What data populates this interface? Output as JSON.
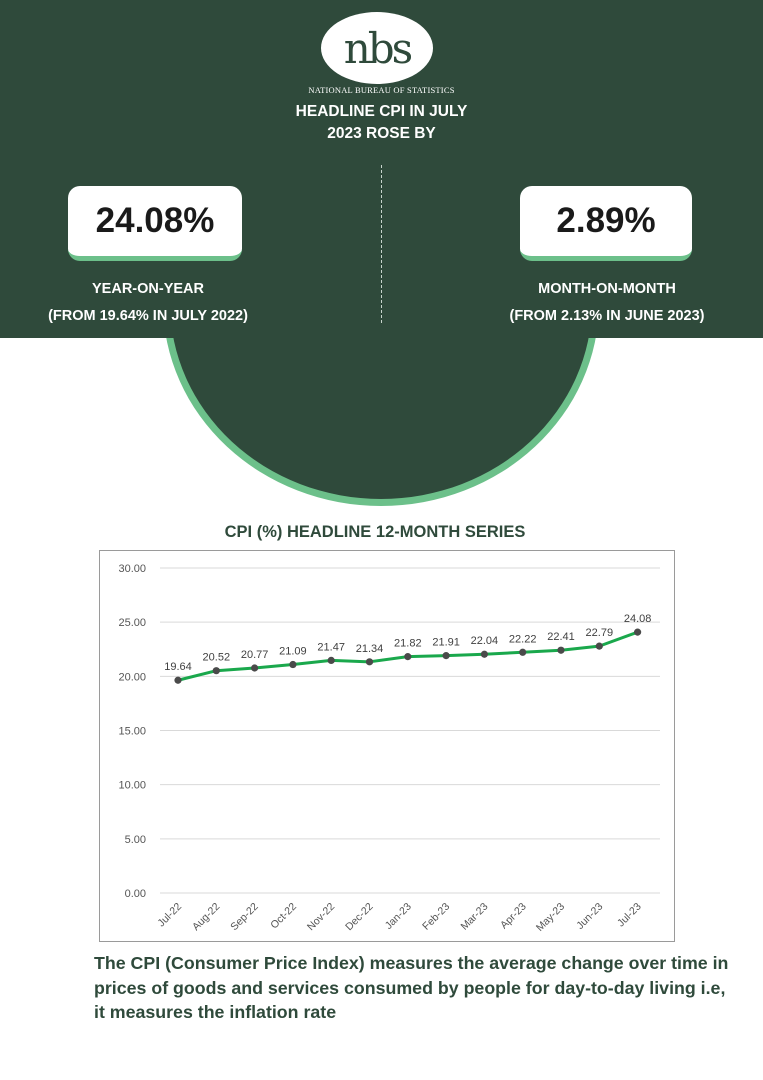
{
  "header": {
    "logo_text": "nbs",
    "logo_subtitle": "NATIONAL BUREAU OF STATISTICS",
    "headline_line1": "HEADLINE CPI IN JULY",
    "headline_line2": "2023 ROSE BY"
  },
  "stats": {
    "yoy": {
      "value": "24.08%",
      "label": "YEAR-ON-YEAR",
      "sub": "(FROM 19.64% IN JULY 2022)"
    },
    "mom": {
      "value": "2.89%",
      "label": "MONTH-ON-MONTH",
      "sub": "(FROM 2.13% IN JUNE 2023)"
    }
  },
  "colors": {
    "banner": "#2f4a3b",
    "accent": "#6cc08a",
    "line": "#1aa84c",
    "marker": "#4a4a4a"
  },
  "chart_data": {
    "type": "line",
    "title": "CPI (%)  HEADLINE 12-MONTH SERIES",
    "categories": [
      "Jul-22",
      "Aug-22",
      "Sep-22",
      "Oct-22",
      "Nov-22",
      "Dec-22",
      "Jan-23",
      "Feb-23",
      "Mar-23",
      "Apr-23",
      "May-23",
      "Jun-23",
      "Jul-23"
    ],
    "series": [
      {
        "values": [
          19.64,
          20.52,
          20.77,
          21.09,
          21.47,
          21.34,
          21.82,
          21.91,
          22.04,
          22.22,
          22.41,
          22.79,
          24.08
        ]
      }
    ],
    "data_labels": [
      "19.64",
      "20.52",
      "20.77",
      "21.09",
      "21.47",
      "21.34",
      "21.82",
      "21.91",
      "22.04",
      "22.22",
      "22.41",
      "22.79",
      "24.08"
    ],
    "yticks": [
      "0.00",
      "5.00",
      "10.00",
      "15.00",
      "20.00",
      "25.00",
      "30.00"
    ],
    "ylim": [
      0,
      30
    ],
    "grid": true,
    "legend": "none"
  },
  "footer": {
    "text": "The CPI (Consumer Price Index) measures the average change over time in prices of goods and services consumed by people for day-to-day living i.e, it measures the inflation rate"
  }
}
